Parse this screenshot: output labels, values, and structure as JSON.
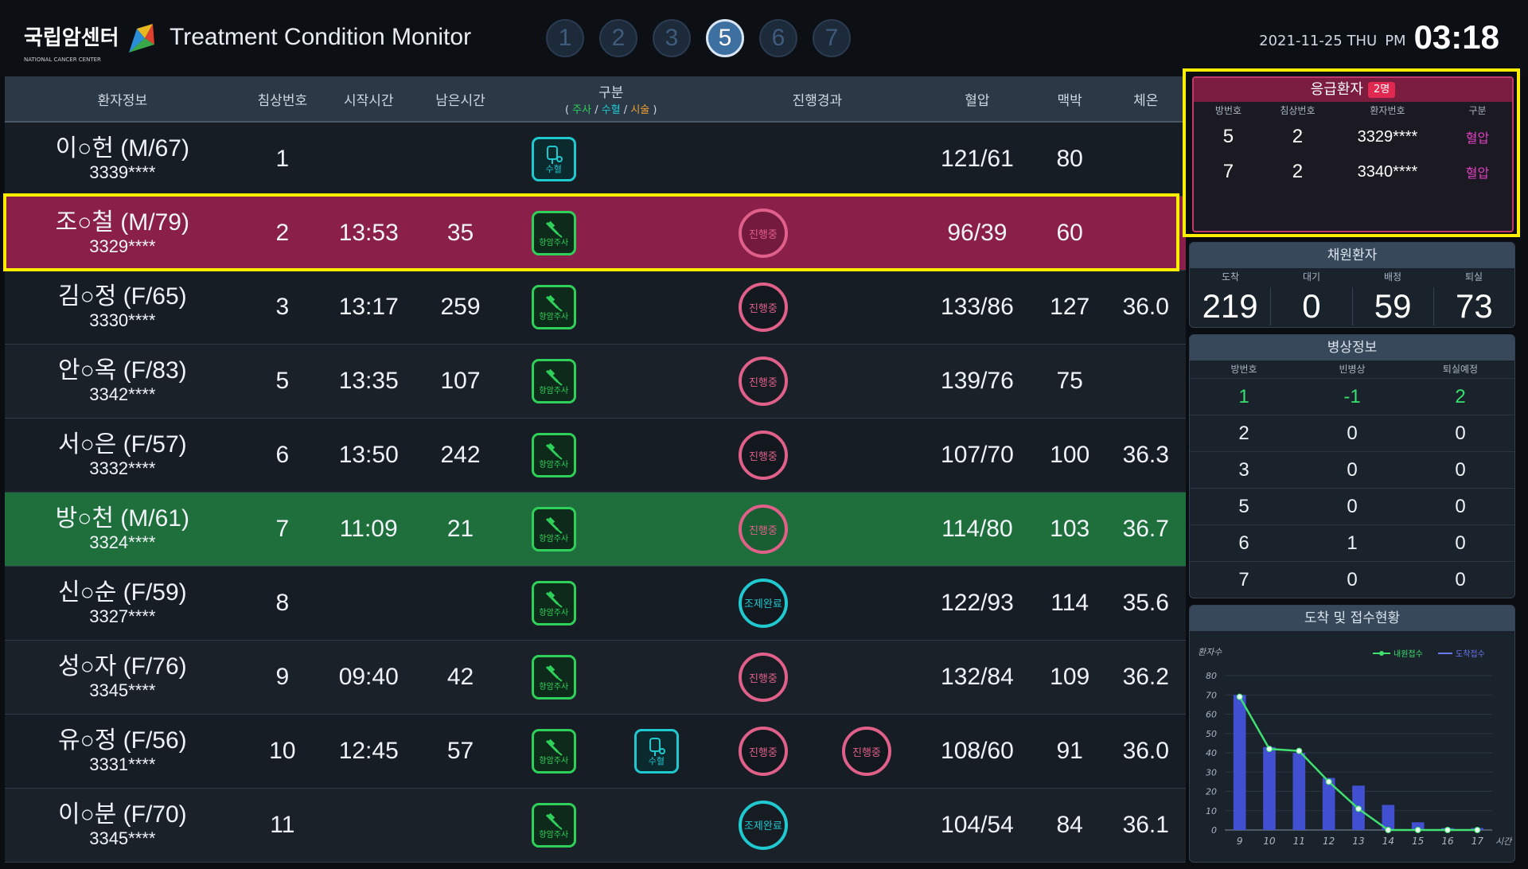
{
  "header": {
    "logo_text": "국립암센터",
    "logo_sub": "NATIONAL CANCER CENTER",
    "title": "Treatment Condition Monitor",
    "pages": [
      "1",
      "2",
      "3",
      "5",
      "6",
      "7"
    ],
    "active_page": "5",
    "date": "2021-11-25 THU",
    "ampm": "PM",
    "time": "03:18"
  },
  "table": {
    "columns": {
      "patient": "환자정보",
      "bed": "침상번호",
      "start": "시작시간",
      "remain": "남은시간",
      "type": "구분",
      "type_inj": "주사",
      "type_trf": "수혈",
      "type_proc": "시술",
      "progress": "진행경과",
      "bp": "혈압",
      "pulse": "맥박",
      "temp": "체온"
    },
    "labels": {
      "inj": "항암주사",
      "trf": "수혈",
      "in_progress": "진행중",
      "done_l1": "조제",
      "done_l2": "완료"
    },
    "rows": [
      {
        "name": "이○헌 (M/67)",
        "id": "3339****",
        "bed": "1",
        "start": "",
        "remain": "",
        "bp": "121/61",
        "pulse": "80",
        "temp": ""
      },
      {
        "name": "조○철 (M/79)",
        "id": "3329****",
        "bed": "2",
        "start": "13:53",
        "remain": "35",
        "bp": "96/39",
        "pulse": "60",
        "temp": ""
      },
      {
        "name": "김○정 (F/65)",
        "id": "3330****",
        "bed": "3",
        "start": "13:17",
        "remain": "259",
        "bp": "133/86",
        "pulse": "127",
        "temp": "36.0"
      },
      {
        "name": "안○옥 (F/83)",
        "id": "3342****",
        "bed": "5",
        "start": "13:35",
        "remain": "107",
        "bp": "139/76",
        "pulse": "75",
        "temp": ""
      },
      {
        "name": "서○은 (F/57)",
        "id": "3332****",
        "bed": "6",
        "start": "13:50",
        "remain": "242",
        "bp": "107/70",
        "pulse": "100",
        "temp": "36.3"
      },
      {
        "name": "방○천 (M/61)",
        "id": "3324****",
        "bed": "7",
        "start": "11:09",
        "remain": "21",
        "bp": "114/80",
        "pulse": "103",
        "temp": "36.7"
      },
      {
        "name": "신○순 (F/59)",
        "id": "3327****",
        "bed": "8",
        "start": "",
        "remain": "",
        "bp": "122/93",
        "pulse": "114",
        "temp": "35.6"
      },
      {
        "name": "성○자 (F/76)",
        "id": "3345****",
        "bed": "9",
        "start": "09:40",
        "remain": "42",
        "bp": "132/84",
        "pulse": "109",
        "temp": "36.2"
      },
      {
        "name": "유○정 (F/56)",
        "id": "3331****",
        "bed": "10",
        "start": "12:45",
        "remain": "57",
        "bp": "108/60",
        "pulse": "91",
        "temp": "36.0"
      },
      {
        "name": "이○분 (F/70)",
        "id": "3345****",
        "bed": "11",
        "start": "",
        "remain": "",
        "bp": "104/54",
        "pulse": "84",
        "temp": "36.1"
      }
    ]
  },
  "emergency": {
    "title": "응급환자",
    "count": "2명",
    "cols": [
      "방번호",
      "침상번호",
      "환자번호",
      "구분"
    ],
    "rows": [
      {
        "room": "5",
        "bed": "2",
        "pid": "3329****",
        "kind": "혈압"
      },
      {
        "room": "7",
        "bed": "2",
        "pid": "3340****",
        "kind": "혈압"
      }
    ]
  },
  "admission": {
    "title": "채원환자",
    "cols": [
      "도착",
      "대기",
      "배정",
      "퇴실"
    ],
    "values": [
      "219",
      "0",
      "59",
      "73"
    ]
  },
  "beds": {
    "title": "병상정보",
    "cols": [
      "방번호",
      "빈병상",
      "퇴실예정"
    ],
    "rows": [
      [
        "1",
        "-1",
        "2"
      ],
      [
        "2",
        "0",
        "0"
      ],
      [
        "3",
        "0",
        "0"
      ],
      [
        "5",
        "0",
        "0"
      ],
      [
        "6",
        "1",
        "0"
      ],
      [
        "7",
        "0",
        "0"
      ]
    ]
  },
  "chart_data": {
    "type": "bar",
    "title": "도착 및 접수현황",
    "ylabel": "환자수",
    "xlabel": "시간",
    "categories": [
      "9",
      "10",
      "11",
      "12",
      "13",
      "14",
      "15",
      "16",
      "17"
    ],
    "ylim": [
      0,
      80
    ],
    "yticks": [
      "0",
      "10",
      "20",
      "30",
      "40",
      "50",
      "60",
      "70",
      "80"
    ],
    "series": [
      {
        "name": "내원접수",
        "kind": "line",
        "color": "#40e070",
        "values": [
          69,
          42,
          41,
          25,
          11,
          0,
          0,
          0,
          0
        ]
      },
      {
        "name": "도착접수",
        "kind": "bar",
        "color": "#4050d0",
        "values": [
          70,
          43,
          40,
          27,
          23,
          13,
          4,
          1,
          1
        ]
      }
    ]
  },
  "colors": {
    "accent_yellow": "#ffee00",
    "emergency_row": "#8a1f4a",
    "green_row": "#1e6f3b"
  }
}
